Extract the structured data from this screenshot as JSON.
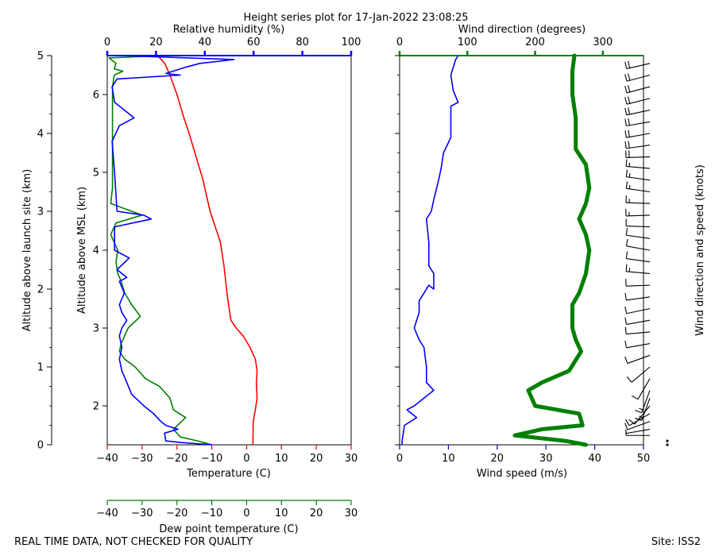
{
  "title": "Height series plot for 17-Jan-2022 23:08:25",
  "footer_left": "REAL TIME DATA, NOT CHECKED FOR QUALITY",
  "footer_right": "Site: ISS2",
  "colors": {
    "temperature": "#ff0000",
    "dewpoint": "#008000",
    "rh": "#0000ff",
    "wind_speed": "#0000ff",
    "wind_dir": "#008000",
    "axis": "#000000"
  },
  "chart_data": [
    {
      "type": "line",
      "panel": "thermo",
      "axes": {
        "x_bottom": {
          "label": "Temperature (C)",
          "range": [
            -40,
            30
          ],
          "ticks": [
            -40,
            -30,
            -20,
            -10,
            0,
            10,
            20,
            30
          ]
        },
        "x_top": {
          "label": "Relative humidity (%)",
          "range": [
            0,
            100
          ],
          "ticks": [
            0,
            20,
            40,
            60,
            80,
            100
          ]
        },
        "x_bottom2": {
          "label": "Dew point temperature (C)",
          "range": [
            -40,
            30
          ],
          "ticks": [
            -40,
            -30,
            -20,
            -10,
            0,
            10,
            20,
            30
          ]
        },
        "y_left_outer": {
          "label": "Altitude above launch site (km)",
          "range": [
            0,
            5
          ],
          "ticks": [
            0,
            1,
            2,
            3,
            4,
            5
          ]
        },
        "y_left_inner": {
          "label": "Altitude above MSL (km)",
          "range": [
            1.5,
            6.5
          ],
          "ticks": [
            2,
            3,
            4,
            5,
            6
          ]
        }
      },
      "series": [
        {
          "name": "Temperature",
          "x_unit": "C",
          "y_unit": "km AGL",
          "points": [
            [
              1.8,
              0.0
            ],
            [
              1.9,
              0.3
            ],
            [
              2.5,
              0.45
            ],
            [
              3.0,
              0.6
            ],
            [
              2.8,
              0.8
            ],
            [
              3.0,
              0.95
            ],
            [
              2.5,
              1.1
            ],
            [
              1.0,
              1.25
            ],
            [
              -1.0,
              1.4
            ],
            [
              -3.0,
              1.5
            ],
            [
              -4.5,
              1.6
            ],
            [
              -5.0,
              1.75
            ],
            [
              -5.5,
              1.9
            ],
            [
              -6.0,
              2.1
            ],
            [
              -6.5,
              2.3
            ],
            [
              -7.5,
              2.6
            ],
            [
              -9.0,
              2.8
            ],
            [
              -10.5,
              3.0
            ],
            [
              -12.5,
              3.4
            ],
            [
              -14.5,
              3.7
            ],
            [
              -16.5,
              4.0
            ],
            [
              -18.0,
              4.2
            ],
            [
              -20.0,
              4.5
            ],
            [
              -22.0,
              4.75
            ],
            [
              -23.5,
              4.9
            ],
            [
              -25.5,
              5.0
            ]
          ]
        },
        {
          "name": "Dew point",
          "x_unit": "C",
          "y_unit": "km AGL",
          "points": [
            [
              -10.0,
              0.0
            ],
            [
              -14.0,
              0.05
            ],
            [
              -19.0,
              0.1
            ],
            [
              -21.0,
              0.2
            ],
            [
              -17.5,
              0.35
            ],
            [
              -21.0,
              0.45
            ],
            [
              -22.0,
              0.6
            ],
            [
              -25.0,
              0.75
            ],
            [
              -29.0,
              0.85
            ],
            [
              -32.0,
              1.0
            ],
            [
              -35.0,
              1.1
            ],
            [
              -36.5,
              1.2
            ],
            [
              -36.0,
              1.3
            ],
            [
              -34.0,
              1.5
            ],
            [
              -30.5,
              1.65
            ],
            [
              -33.0,
              1.8
            ],
            [
              -35.0,
              1.95
            ],
            [
              -36.0,
              2.1
            ],
            [
              -37.0,
              2.2
            ],
            [
              -37.5,
              2.35
            ],
            [
              -37.0,
              2.5
            ],
            [
              -39.0,
              2.7
            ],
            [
              -37.5,
              2.85
            ],
            [
              -30.0,
              2.95
            ],
            [
              -33.0,
              3.0
            ],
            [
              -39.0,
              3.1
            ],
            [
              -38.5,
              3.3
            ],
            [
              -38.5,
              3.5
            ],
            [
              -38.5,
              3.8
            ],
            [
              -38.5,
              4.2
            ],
            [
              -38.5,
              4.6
            ],
            [
              -38.0,
              4.75
            ],
            [
              -35.5,
              4.8
            ],
            [
              -38.0,
              4.83
            ],
            [
              -37.5,
              4.9
            ],
            [
              -39.5,
              4.97
            ],
            [
              -29.0,
              4.99
            ]
          ]
        },
        {
          "name": "Relative humidity",
          "x_unit": "%",
          "y_unit": "km AGL",
          "points": [
            [
              43.0,
              0.0
            ],
            [
              30.0,
              0.03
            ],
            [
              24.0,
              0.05
            ],
            [
              23.5,
              0.15
            ],
            [
              29.0,
              0.2
            ],
            [
              24.0,
              0.25
            ],
            [
              22.0,
              0.3
            ],
            [
              19.0,
              0.4
            ],
            [
              15.0,
              0.5
            ],
            [
              10.0,
              0.65
            ],
            [
              8.0,
              0.8
            ],
            [
              6.0,
              0.95
            ],
            [
              5.0,
              1.1
            ],
            [
              6.0,
              1.25
            ],
            [
              5.0,
              1.4
            ],
            [
              6.0,
              1.5
            ],
            [
              8.0,
              1.6
            ],
            [
              6.0,
              1.7
            ],
            [
              5.0,
              1.8
            ],
            [
              7.0,
              1.95
            ],
            [
              5.0,
              2.1
            ],
            [
              8.0,
              2.15
            ],
            [
              4.0,
              2.25
            ],
            [
              9.0,
              2.4
            ],
            [
              3.0,
              2.5
            ],
            [
              3.0,
              2.7
            ],
            [
              3.0,
              2.8
            ],
            [
              18.0,
              2.9
            ],
            [
              15.0,
              2.95
            ],
            [
              4.0,
              3.0
            ],
            [
              3.0,
              3.5
            ],
            [
              2.0,
              3.9
            ],
            [
              5.0,
              4.1
            ],
            [
              11.0,
              4.2
            ],
            [
              3.0,
              4.4
            ],
            [
              2.0,
              4.6
            ],
            [
              4.0,
              4.7
            ],
            [
              30.0,
              4.75
            ],
            [
              24.0,
              4.77
            ],
            [
              32.0,
              4.85
            ],
            [
              38.0,
              4.9
            ],
            [
              52.0,
              4.95
            ],
            [
              5.0,
              5.0
            ]
          ]
        }
      ]
    },
    {
      "type": "line",
      "panel": "wind",
      "axes": {
        "x_bottom": {
          "label": "Wind speed (m/s)",
          "range": [
            0,
            50
          ],
          "ticks": [
            0,
            10,
            20,
            30,
            40,
            50
          ]
        },
        "x_top": {
          "label": "Wind direction (degrees)",
          "range": [
            0,
            360
          ],
          "ticks": [
            0,
            100,
            200,
            300
          ]
        },
        "y_right": {
          "label": "Wind direction and speed (knots)"
        },
        "y": {
          "range": [
            0,
            5
          ]
        }
      },
      "series": [
        {
          "name": "Wind speed",
          "x_unit": "m/s",
          "y_unit": "km AGL",
          "points": [
            [
              0.5,
              0.0
            ],
            [
              0.5,
              0.05
            ],
            [
              1.0,
              0.25
            ],
            [
              3.5,
              0.35
            ],
            [
              1.5,
              0.45
            ],
            [
              3.0,
              0.5
            ],
            [
              7.0,
              0.7
            ],
            [
              5.5,
              0.8
            ],
            [
              5.5,
              1.0
            ],
            [
              5.0,
              1.25
            ],
            [
              4.0,
              1.35
            ],
            [
              3.0,
              1.5
            ],
            [
              4.0,
              1.7
            ],
            [
              4.0,
              1.85
            ],
            [
              5.0,
              1.95
            ],
            [
              6.0,
              2.05
            ],
            [
              7.0,
              2.0
            ],
            [
              7.0,
              2.2
            ],
            [
              6.0,
              2.3
            ],
            [
              6.0,
              2.6
            ],
            [
              5.5,
              2.9
            ],
            [
              6.5,
              3.0
            ],
            [
              7.0,
              3.15
            ],
            [
              8.0,
              3.4
            ],
            [
              8.5,
              3.55
            ],
            [
              9.0,
              3.75
            ],
            [
              10.5,
              3.95
            ],
            [
              10.5,
              4.2
            ],
            [
              10.5,
              4.35
            ],
            [
              12.0,
              4.4
            ],
            [
              11.0,
              4.55
            ],
            [
              10.5,
              4.75
            ],
            [
              11.5,
              4.95
            ],
            [
              12.0,
              5.0
            ]
          ]
        },
        {
          "name": "Wind direction",
          "x_unit": "degrees",
          "y_unit": "km AGL",
          "points": [
            [
              275,
              0.0
            ],
            [
              245,
              0.05
            ],
            [
              170,
              0.12
            ],
            [
              210,
              0.2
            ],
            [
              270,
              0.25
            ],
            [
              265,
              0.4
            ],
            [
              200,
              0.5
            ],
            [
              190,
              0.7
            ],
            [
              210,
              0.8
            ],
            [
              250,
              0.95
            ],
            [
              268,
              1.2
            ],
            [
              260,
              1.35
            ],
            [
              255,
              1.5
            ],
            [
              255,
              1.8
            ],
            [
              265,
              1.95
            ],
            [
              275,
              2.2
            ],
            [
              280,
              2.5
            ],
            [
              275,
              2.7
            ],
            [
              265,
              2.9
            ],
            [
              275,
              3.1
            ],
            [
              280,
              3.3
            ],
            [
              275,
              3.6
            ],
            [
              260,
              3.8
            ],
            [
              260,
              4.2
            ],
            [
              255,
              4.5
            ],
            [
              255,
              4.8
            ],
            [
              258,
              5.0
            ]
          ]
        }
      ],
      "barbs": {
        "name": "Wind direction and speed (knots)",
        "levels": [
          {
            "y": 0.0,
            "dir": 275,
            "spd": 2
          },
          {
            "y": 0.05,
            "dir": 260,
            "spd": 2
          },
          {
            "y": 0.12,
            "dir": 270,
            "spd": 4
          },
          {
            "y": 0.2,
            "dir": 260,
            "spd": 6
          },
          {
            "y": 0.3,
            "dir": 250,
            "spd": 10
          },
          {
            "y": 0.4,
            "dir": 240,
            "spd": 8
          },
          {
            "y": 0.5,
            "dir": 220,
            "spd": 12
          },
          {
            "y": 0.6,
            "dir": 200,
            "spd": 14
          },
          {
            "y": 0.7,
            "dir": 200,
            "spd": 14
          },
          {
            "y": 0.85,
            "dir": 210,
            "spd": 12
          },
          {
            "y": 1.0,
            "dir": 230,
            "spd": 12
          },
          {
            "y": 1.15,
            "dir": 250,
            "spd": 12
          },
          {
            "y": 1.3,
            "dir": 260,
            "spd": 10
          },
          {
            "y": 1.45,
            "dir": 265,
            "spd": 8
          },
          {
            "y": 1.6,
            "dir": 260,
            "spd": 8
          },
          {
            "y": 1.75,
            "dir": 258,
            "spd": 8
          },
          {
            "y": 1.9,
            "dir": 262,
            "spd": 10
          },
          {
            "y": 2.05,
            "dir": 268,
            "spd": 12
          },
          {
            "y": 2.2,
            "dir": 275,
            "spd": 14
          },
          {
            "y": 2.35,
            "dir": 278,
            "spd": 12
          },
          {
            "y": 2.5,
            "dir": 280,
            "spd": 12
          },
          {
            "y": 2.65,
            "dir": 278,
            "spd": 12
          },
          {
            "y": 2.8,
            "dir": 272,
            "spd": 12
          },
          {
            "y": 2.95,
            "dir": 268,
            "spd": 14
          },
          {
            "y": 3.1,
            "dir": 272,
            "spd": 14
          },
          {
            "y": 3.25,
            "dir": 278,
            "spd": 16
          },
          {
            "y": 3.4,
            "dir": 278,
            "spd": 16
          },
          {
            "y": 3.55,
            "dir": 275,
            "spd": 16
          },
          {
            "y": 3.7,
            "dir": 268,
            "spd": 18
          },
          {
            "y": 3.85,
            "dir": 262,
            "spd": 20
          },
          {
            "y": 4.0,
            "dir": 260,
            "spd": 20
          },
          {
            "y": 4.15,
            "dir": 260,
            "spd": 20
          },
          {
            "y": 4.3,
            "dir": 258,
            "spd": 22
          },
          {
            "y": 4.45,
            "dir": 256,
            "spd": 22
          },
          {
            "y": 4.6,
            "dir": 255,
            "spd": 22
          },
          {
            "y": 4.75,
            "dir": 255,
            "spd": 22
          },
          {
            "y": 4.9,
            "dir": 257,
            "spd": 22
          }
        ]
      }
    }
  ]
}
